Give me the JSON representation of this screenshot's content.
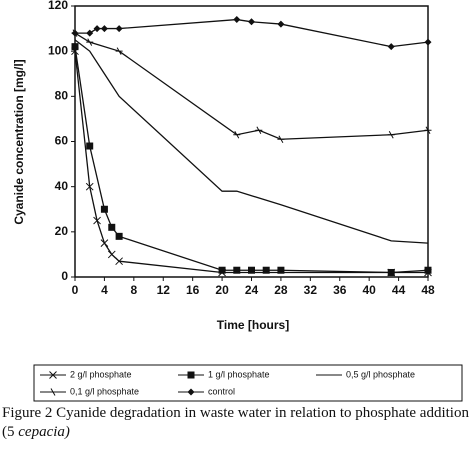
{
  "chart_data": {
    "type": "line",
    "xlabel": "Time [hours]",
    "ylabel": "Cyanide concentration [mg/l]",
    "xlim": [
      0,
      48
    ],
    "xticks": [
      0,
      4,
      8,
      12,
      16,
      20,
      24,
      28,
      32,
      36,
      40,
      44,
      48
    ],
    "ylim": [
      0,
      120
    ],
    "yticks": [
      0,
      20,
      40,
      60,
      80,
      100,
      120
    ],
    "series": [
      {
        "name": "2 g/l phosphate",
        "color": "#111111",
        "marker": "x",
        "x": [
          0,
          2,
          3,
          4,
          5,
          6,
          20,
          43,
          48
        ],
        "values": [
          100,
          40,
          25,
          15,
          10,
          7,
          2,
          2,
          2
        ]
      },
      {
        "name": "1 g/l phosphate",
        "color": "#111111",
        "marker": "square",
        "x": [
          0,
          2,
          4,
          5,
          6,
          20,
          22,
          24,
          26,
          28,
          43,
          48
        ],
        "values": [
          102,
          58,
          30,
          22,
          18,
          3,
          3,
          3,
          3,
          3,
          2,
          3
        ]
      },
      {
        "name": "0,5 g/l phosphate",
        "color": "#111111",
        "marker": "none",
        "x": [
          0,
          2,
          4,
          6,
          20,
          22,
          28,
          43,
          48
        ],
        "values": [
          105,
          100,
          90,
          80,
          38,
          38,
          32,
          16,
          15
        ]
      },
      {
        "name": "0,1 g/l phosphate",
        "color": "#111111",
        "marker": "star",
        "x": [
          0,
          2,
          6,
          22,
          25,
          28,
          43,
          48
        ],
        "values": [
          108,
          104,
          100,
          63,
          65,
          61,
          63,
          65
        ]
      },
      {
        "name": "control",
        "color": "#111111",
        "marker": "diamond",
        "x": [
          0,
          2,
          3,
          4,
          6,
          22,
          24,
          28,
          43,
          48
        ],
        "values": [
          108,
          108,
          110,
          110,
          110,
          114,
          113,
          112,
          102,
          104
        ]
      }
    ]
  },
  "caption": {
    "text": "Figure 2  Cyanide degradation in waste water in relation to phosphate addition (5",
    "species": "cepacia)"
  }
}
